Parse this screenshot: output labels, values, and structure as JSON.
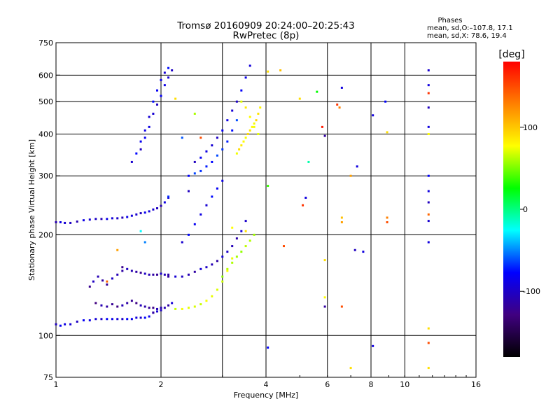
{
  "chart_data": {
    "type": "scatter",
    "title": "Tromsø 20160909 20:24:00–20:25:43",
    "subtitle": "RwPretec (8p)",
    "stats": {
      "title": "Phases",
      "line1": "mean, sd,O:–107.8, 17.1",
      "line2": "mean, sd,X:  78.6, 19.4"
    },
    "xlabel": "Frequency [MHz]",
    "ylabel": "Stationary phase Virtual Height [km]",
    "x_scale": "log",
    "y_scale": "log",
    "xlim": [
      1,
      16
    ],
    "ylim": [
      75,
      750
    ],
    "x_ticks": [
      1,
      2,
      4,
      8,
      16
    ],
    "x_tick_labels": [
      "1",
      "2",
      "4",
      "8",
      "16"
    ],
    "x_minor_labels": [
      6,
      10
    ],
    "x_minor_label_text": [
      "6",
      "10"
    ],
    "x_grid": [
      2,
      3,
      4,
      6,
      8,
      10
    ],
    "y_ticks": [
      75,
      100,
      200,
      300,
      400,
      500,
      600,
      750
    ],
    "y_tick_labels": [
      "75",
      "100",
      "200",
      "300",
      "400",
      "500",
      "600",
      "750"
    ],
    "y_grid": [
      100,
      200,
      300,
      400,
      500,
      600
    ],
    "grid": true,
    "colorbar": {
      "label": "[deg]",
      "range": [
        -180,
        180
      ],
      "ticks": [
        100,
        0,
        -100
      ],
      "tick_labels": [
        "100",
        "0",
        "-100"
      ],
      "colors": [
        "#ff0000",
        "#ff8000",
        "#ffff00",
        "#00ff00",
        "#00ffff",
        "#0000ff",
        "#400080",
        "#000000"
      ]
    },
    "traces": [
      {
        "x": [
          1.0,
          1.03,
          1.06,
          1.1,
          1.15,
          1.2,
          1.25,
          1.3,
          1.35,
          1.4,
          1.45,
          1.5,
          1.55,
          1.6,
          1.65,
          1.7,
          1.75,
          1.8,
          1.85,
          1.9
        ],
        "y": [
          108,
          107,
          108,
          108,
          110,
          111,
          111,
          112,
          112,
          112,
          112,
          112,
          112,
          112,
          112,
          113,
          113,
          113,
          114,
          117
        ],
        "phase": -100
      },
      {
        "x": [
          1.9,
          1.95,
          2.0,
          2.05,
          2.1,
          2.15
        ],
        "y": [
          117,
          118,
          119,
          121,
          123,
          125
        ],
        "phase": -110
      },
      {
        "x": [
          1.3,
          1.35,
          1.4,
          1.45,
          1.5,
          1.55,
          1.6,
          1.65,
          1.7,
          1.75,
          1.8,
          1.85,
          1.9,
          1.95,
          2.0
        ],
        "y": [
          125,
          123,
          122,
          124,
          122,
          123,
          125,
          127,
          125,
          123,
          122,
          121,
          121,
          120,
          121
        ],
        "phase": -120
      },
      {
        "x": [
          1.25,
          1.28,
          1.32,
          1.36,
          1.4,
          1.45,
          1.5,
          1.55
        ],
        "y": [
          140,
          145,
          150,
          146,
          142,
          148,
          152,
          156
        ],
        "phase": -115
      },
      {
        "x": [
          1.55,
          1.6,
          1.65,
          1.7,
          1.75,
          1.8,
          1.85,
          1.9,
          1.95,
          2.0,
          2.05,
          2.1
        ],
        "y": [
          160,
          158,
          156,
          155,
          154,
          153,
          152,
          152,
          152,
          153,
          152,
          152
        ],
        "phase": -115
      },
      {
        "x": [
          1.0,
          1.03,
          1.06,
          1.1,
          1.15,
          1.2,
          1.25,
          1.3,
          1.35,
          1.4,
          1.45,
          1.5,
          1.55,
          1.6,
          1.65,
          1.7,
          1.75,
          1.8,
          1.85,
          1.9,
          1.95,
          2.0,
          2.05,
          2.1
        ],
        "y": [
          218,
          218,
          217,
          217,
          219,
          221,
          222,
          223,
          223,
          223,
          224,
          224,
          225,
          226,
          228,
          230,
          232,
          233,
          235,
          238,
          240,
          244,
          250,
          258
        ],
        "phase": -105
      },
      {
        "x": [
          1.65,
          1.7,
          1.75,
          1.8,
          1.85,
          1.9,
          1.95,
          2.0,
          2.05,
          2.1
        ],
        "y": [
          330,
          350,
          380,
          410,
          450,
          500,
          540,
          580,
          610,
          630
        ],
        "phase": -95
      },
      {
        "x": [
          1.75,
          1.8,
          1.85,
          1.9,
          1.95,
          2.0,
          2.05,
          2.1,
          2.15
        ],
        "y": [
          360,
          390,
          420,
          460,
          490,
          520,
          560,
          590,
          620
        ],
        "phase": -100
      },
      {
        "x": [
          2.1,
          2.2,
          2.3,
          2.4,
          2.5,
          2.6,
          2.7,
          2.8,
          2.9,
          3.0,
          3.1,
          3.2,
          3.3,
          3.4,
          3.5
        ],
        "y": [
          150,
          150,
          150,
          152,
          155,
          158,
          160,
          163,
          167,
          172,
          178,
          185,
          195,
          205,
          220
        ],
        "phase": -110
      },
      {
        "x": [
          2.3,
          2.4,
          2.5,
          2.6,
          2.7,
          2.8,
          2.9,
          3.0
        ],
        "y": [
          190,
          200,
          215,
          230,
          245,
          260,
          275,
          290
        ],
        "phase": -95
      },
      {
        "x": [
          2.2,
          2.3,
          2.4,
          2.5,
          2.6,
          2.7,
          2.8,
          2.9,
          3.0,
          3.1,
          3.2
        ],
        "y": [
          120,
          120,
          121,
          122,
          124,
          127,
          131,
          137,
          145,
          156,
          170
        ],
        "phase": 80
      },
      {
        "x": [
          3.0,
          3.1,
          3.2,
          3.3,
          3.4,
          3.5,
          3.6,
          3.7
        ],
        "y": [
          150,
          158,
          165,
          172,
          178,
          185,
          192,
          200
        ],
        "phase": 60
      },
      {
        "x": [
          2.4,
          2.5,
          2.6,
          2.7,
          2.8,
          2.9,
          3.0,
          3.1,
          3.2,
          3.3
        ],
        "y": [
          300,
          305,
          310,
          320,
          330,
          345,
          360,
          380,
          410,
          440
        ],
        "phase": -80
      },
      {
        "x": [
          2.5,
          2.6,
          2.7,
          2.8,
          2.9,
          3.0,
          3.1,
          3.2,
          3.3,
          3.4,
          3.5,
          3.6
        ],
        "y": [
          330,
          340,
          355,
          370,
          390,
          410,
          440,
          470,
          500,
          540,
          590,
          640
        ],
        "phase": -100
      },
      {
        "x": [
          3.3,
          3.35,
          3.4,
          3.45,
          3.5,
          3.55,
          3.6,
          3.65,
          3.7,
          3.75,
          3.8,
          3.85
        ],
        "y": [
          350,
          360,
          370,
          380,
          390,
          400,
          410,
          420,
          430,
          440,
          460,
          480
        ],
        "phase": 95
      },
      {
        "x": [
          3.4,
          3.5,
          3.6,
          3.7,
          3.8
        ],
        "y": [
          500,
          480,
          450,
          420,
          400
        ],
        "phase": 90
      }
    ],
    "points": [
      {
        "x": 11.7,
        "y": 620,
        "phase": -105
      },
      {
        "x": 11.7,
        "y": 560,
        "phase": -100
      },
      {
        "x": 11.7,
        "y": 530,
        "phase": 160
      },
      {
        "x": 11.7,
        "y": 480,
        "phase": -110
      },
      {
        "x": 11.7,
        "y": 420,
        "phase": -100
      },
      {
        "x": 11.7,
        "y": 400,
        "phase": 90
      },
      {
        "x": 11.7,
        "y": 300,
        "phase": -90
      },
      {
        "x": 11.7,
        "y": 270,
        "phase": -100
      },
      {
        "x": 11.7,
        "y": 250,
        "phase": -110
      },
      {
        "x": 11.7,
        "y": 230,
        "phase": 140
      },
      {
        "x": 11.7,
        "y": 220,
        "phase": -105
      },
      {
        "x": 11.7,
        "y": 190,
        "phase": -100
      },
      {
        "x": 11.7,
        "y": 105,
        "phase": 100
      },
      {
        "x": 11.7,
        "y": 95,
        "phase": 150
      },
      {
        "x": 11.7,
        "y": 80,
        "phase": 100
      },
      {
        "x": 6.6,
        "y": 550,
        "phase": -100
      },
      {
        "x": 6.4,
        "y": 490,
        "phase": 160
      },
      {
        "x": 6.5,
        "y": 480,
        "phase": 130
      },
      {
        "x": 5.8,
        "y": 420,
        "phase": 170
      },
      {
        "x": 5.9,
        "y": 395,
        "phase": -120
      },
      {
        "x": 5.3,
        "y": 330,
        "phase": -20
      },
      {
        "x": 4.05,
        "y": 280,
        "phase": 20
      },
      {
        "x": 5.2,
        "y": 258,
        "phase": -100
      },
      {
        "x": 5.1,
        "y": 245,
        "phase": 160
      },
      {
        "x": 6.6,
        "y": 225,
        "phase": 110
      },
      {
        "x": 6.6,
        "y": 218,
        "phase": 120
      },
      {
        "x": 4.5,
        "y": 185,
        "phase": 150
      },
      {
        "x": 7.2,
        "y": 180,
        "phase": -110
      },
      {
        "x": 7.6,
        "y": 178,
        "phase": -100
      },
      {
        "x": 5.9,
        "y": 168,
        "phase": 100
      },
      {
        "x": 5.9,
        "y": 130,
        "phase": 90
      },
      {
        "x": 5.9,
        "y": 122,
        "phase": -120
      },
      {
        "x": 6.6,
        "y": 122,
        "phase": 150
      },
      {
        "x": 7.3,
        "y": 320,
        "phase": -100
      },
      {
        "x": 7.0,
        "y": 300,
        "phase": 120
      },
      {
        "x": 8.1,
        "y": 455,
        "phase": -100
      },
      {
        "x": 8.8,
        "y": 500,
        "phase": -90
      },
      {
        "x": 8.9,
        "y": 405,
        "phase": 100
      },
      {
        "x": 8.9,
        "y": 225,
        "phase": 130
      },
      {
        "x": 8.9,
        "y": 218,
        "phase": 150
      },
      {
        "x": 8.1,
        "y": 93,
        "phase": -100
      },
      {
        "x": 4.05,
        "y": 92,
        "phase": -90
      },
      {
        "x": 7.0,
        "y": 80,
        "phase": 100
      },
      {
        "x": 4.4,
        "y": 620,
        "phase": 110
      },
      {
        "x": 4.05,
        "y": 615,
        "phase": 100
      },
      {
        "x": 5.6,
        "y": 535,
        "phase": 0
      },
      {
        "x": 5.0,
        "y": 510,
        "phase": 100
      },
      {
        "x": 2.5,
        "y": 460,
        "phase": 60
      },
      {
        "x": 2.3,
        "y": 390,
        "phase": -70
      },
      {
        "x": 1.75,
        "y": 205,
        "phase": -30
      },
      {
        "x": 1.8,
        "y": 190,
        "phase": -60
      },
      {
        "x": 1.5,
        "y": 180,
        "phase": 120
      },
      {
        "x": 1.4,
        "y": 145,
        "phase": 140
      },
      {
        "x": 2.1,
        "y": 260,
        "phase": -80
      },
      {
        "x": 2.4,
        "y": 270,
        "phase": -110
      },
      {
        "x": 3.2,
        "y": 210,
        "phase": 90
      },
      {
        "x": 3.5,
        "y": 205,
        "phase": 100
      },
      {
        "x": 2.6,
        "y": 390,
        "phase": 150
      },
      {
        "x": 2.2,
        "y": 510,
        "phase": 100
      }
    ]
  }
}
